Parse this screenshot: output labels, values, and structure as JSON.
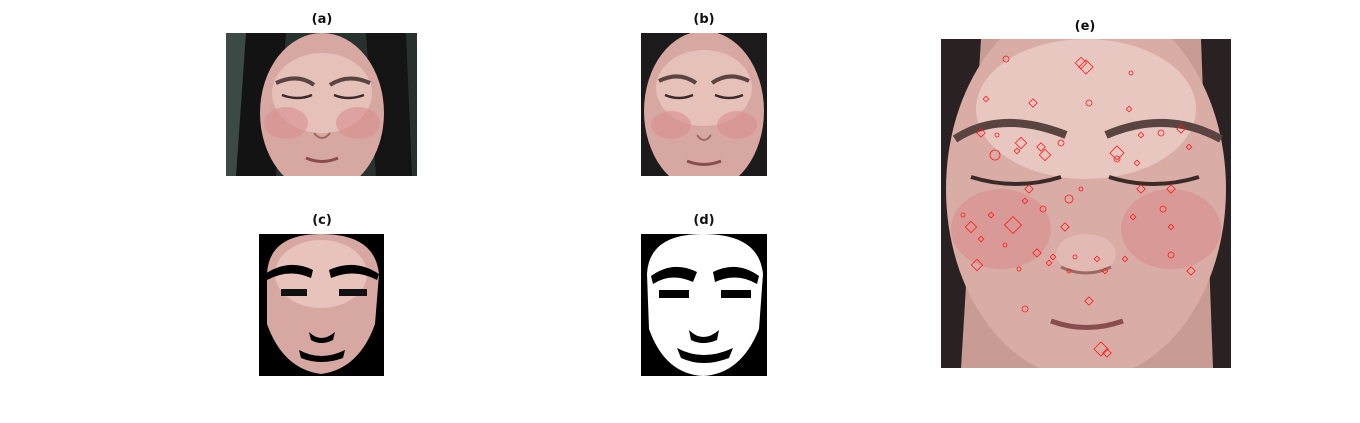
{
  "panels": {
    "a": {
      "label": "(a)"
    },
    "b": {
      "label": "(b)"
    },
    "c": {
      "label": "(c)"
    },
    "d": {
      "label": "(d)"
    },
    "e": {
      "label": "(e)"
    }
  },
  "colors": {
    "skin": "#d8a7a2",
    "skin_light": "#ecc9c3",
    "hair": "#1c1a1a",
    "background_dark": "#2a3530",
    "mask_white": "#ffffff",
    "mask_black": "#000000",
    "marker": "#ff1a1a"
  }
}
